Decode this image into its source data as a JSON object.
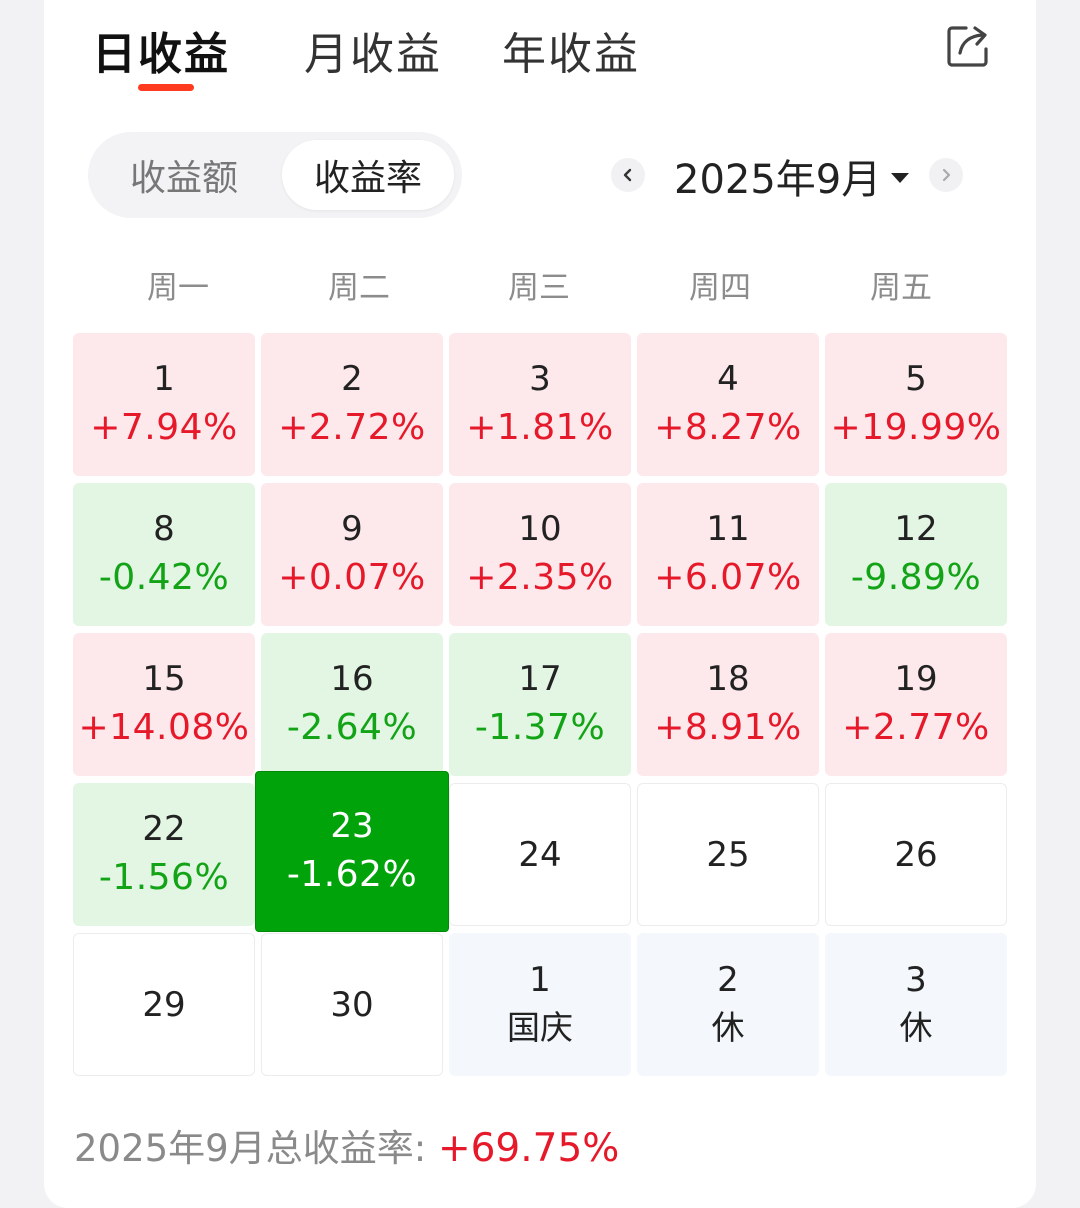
{
  "tabs": [
    {
      "label": "日收益",
      "active": true
    },
    {
      "label": "月收益",
      "active": false
    },
    {
      "label": "年收益",
      "active": false
    }
  ],
  "icons": {
    "share": "share-icon",
    "prev": "chevron-left-icon",
    "next": "chevron-right-icon",
    "dropdown": "caret-down-icon"
  },
  "toggle": {
    "left_label": "收益额",
    "right_label": "收益率",
    "selected": "收益率"
  },
  "month": {
    "label": "2025年9月"
  },
  "weekdays": [
    "周一",
    "周二",
    "周三",
    "周四",
    "周五"
  ],
  "colors": {
    "up": "#e6192a",
    "down": "#13a316",
    "up_bg": "#fde8ec",
    "down_bg": "#e2f6e3",
    "selected_bg": "#00a30a",
    "accent": "#ff3b1f"
  },
  "calendar": [
    {
      "day": "1",
      "value": "+7.94%",
      "state": "up"
    },
    {
      "day": "2",
      "value": "+2.72%",
      "state": "up"
    },
    {
      "day": "3",
      "value": "+1.81%",
      "state": "up"
    },
    {
      "day": "4",
      "value": "+8.27%",
      "state": "up"
    },
    {
      "day": "5",
      "value": "+19.99%",
      "state": "up"
    },
    {
      "day": "8",
      "value": "-0.42%",
      "state": "down"
    },
    {
      "day": "9",
      "value": "+0.07%",
      "state": "up"
    },
    {
      "day": "10",
      "value": "+2.35%",
      "state": "up"
    },
    {
      "day": "11",
      "value": "+6.07%",
      "state": "up"
    },
    {
      "day": "12",
      "value": "-9.89%",
      "state": "down"
    },
    {
      "day": "15",
      "value": "+14.08%",
      "state": "up"
    },
    {
      "day": "16",
      "value": "-2.64%",
      "state": "down"
    },
    {
      "day": "17",
      "value": "-1.37%",
      "state": "down"
    },
    {
      "day": "18",
      "value": "+8.91%",
      "state": "up"
    },
    {
      "day": "19",
      "value": "+2.77%",
      "state": "up"
    },
    {
      "day": "22",
      "value": "-1.56%",
      "state": "down"
    },
    {
      "day": "23",
      "value": "-1.62%",
      "state": "selected"
    },
    {
      "day": "24",
      "value": "",
      "state": "empty"
    },
    {
      "day": "25",
      "value": "",
      "state": "empty"
    },
    {
      "day": "26",
      "value": "",
      "state": "empty"
    },
    {
      "day": "29",
      "value": "",
      "state": "empty"
    },
    {
      "day": "30",
      "value": "",
      "state": "empty"
    },
    {
      "day": "1",
      "value": "国庆",
      "state": "holiday"
    },
    {
      "day": "2",
      "value": "休",
      "state": "holiday"
    },
    {
      "day": "3",
      "value": "休",
      "state": "holiday"
    }
  ],
  "summary": {
    "label": "2025年9月总收益率: ",
    "value": "+69.75%"
  }
}
